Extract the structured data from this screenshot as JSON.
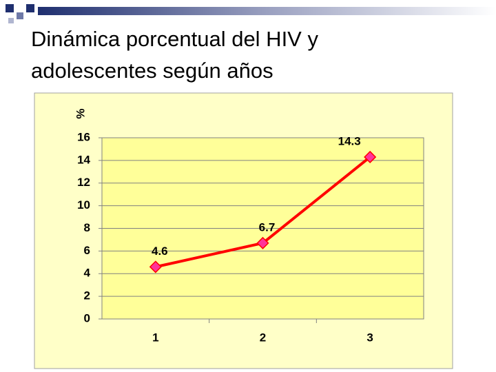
{
  "chart_data": {
    "type": "line",
    "title": "Dinámica porcentual del HIV y adolescentes según años",
    "y_label": "%",
    "categories": [
      "1",
      "2",
      "3"
    ],
    "values": [
      4.6,
      6.7,
      14.3
    ],
    "color": "#ff0000",
    "marker_color": "#ff3399",
    "ylim": [
      0,
      16
    ],
    "yticks": [
      0,
      2,
      4,
      6,
      8,
      10,
      12,
      14,
      16
    ],
    "grid": true
  }
}
